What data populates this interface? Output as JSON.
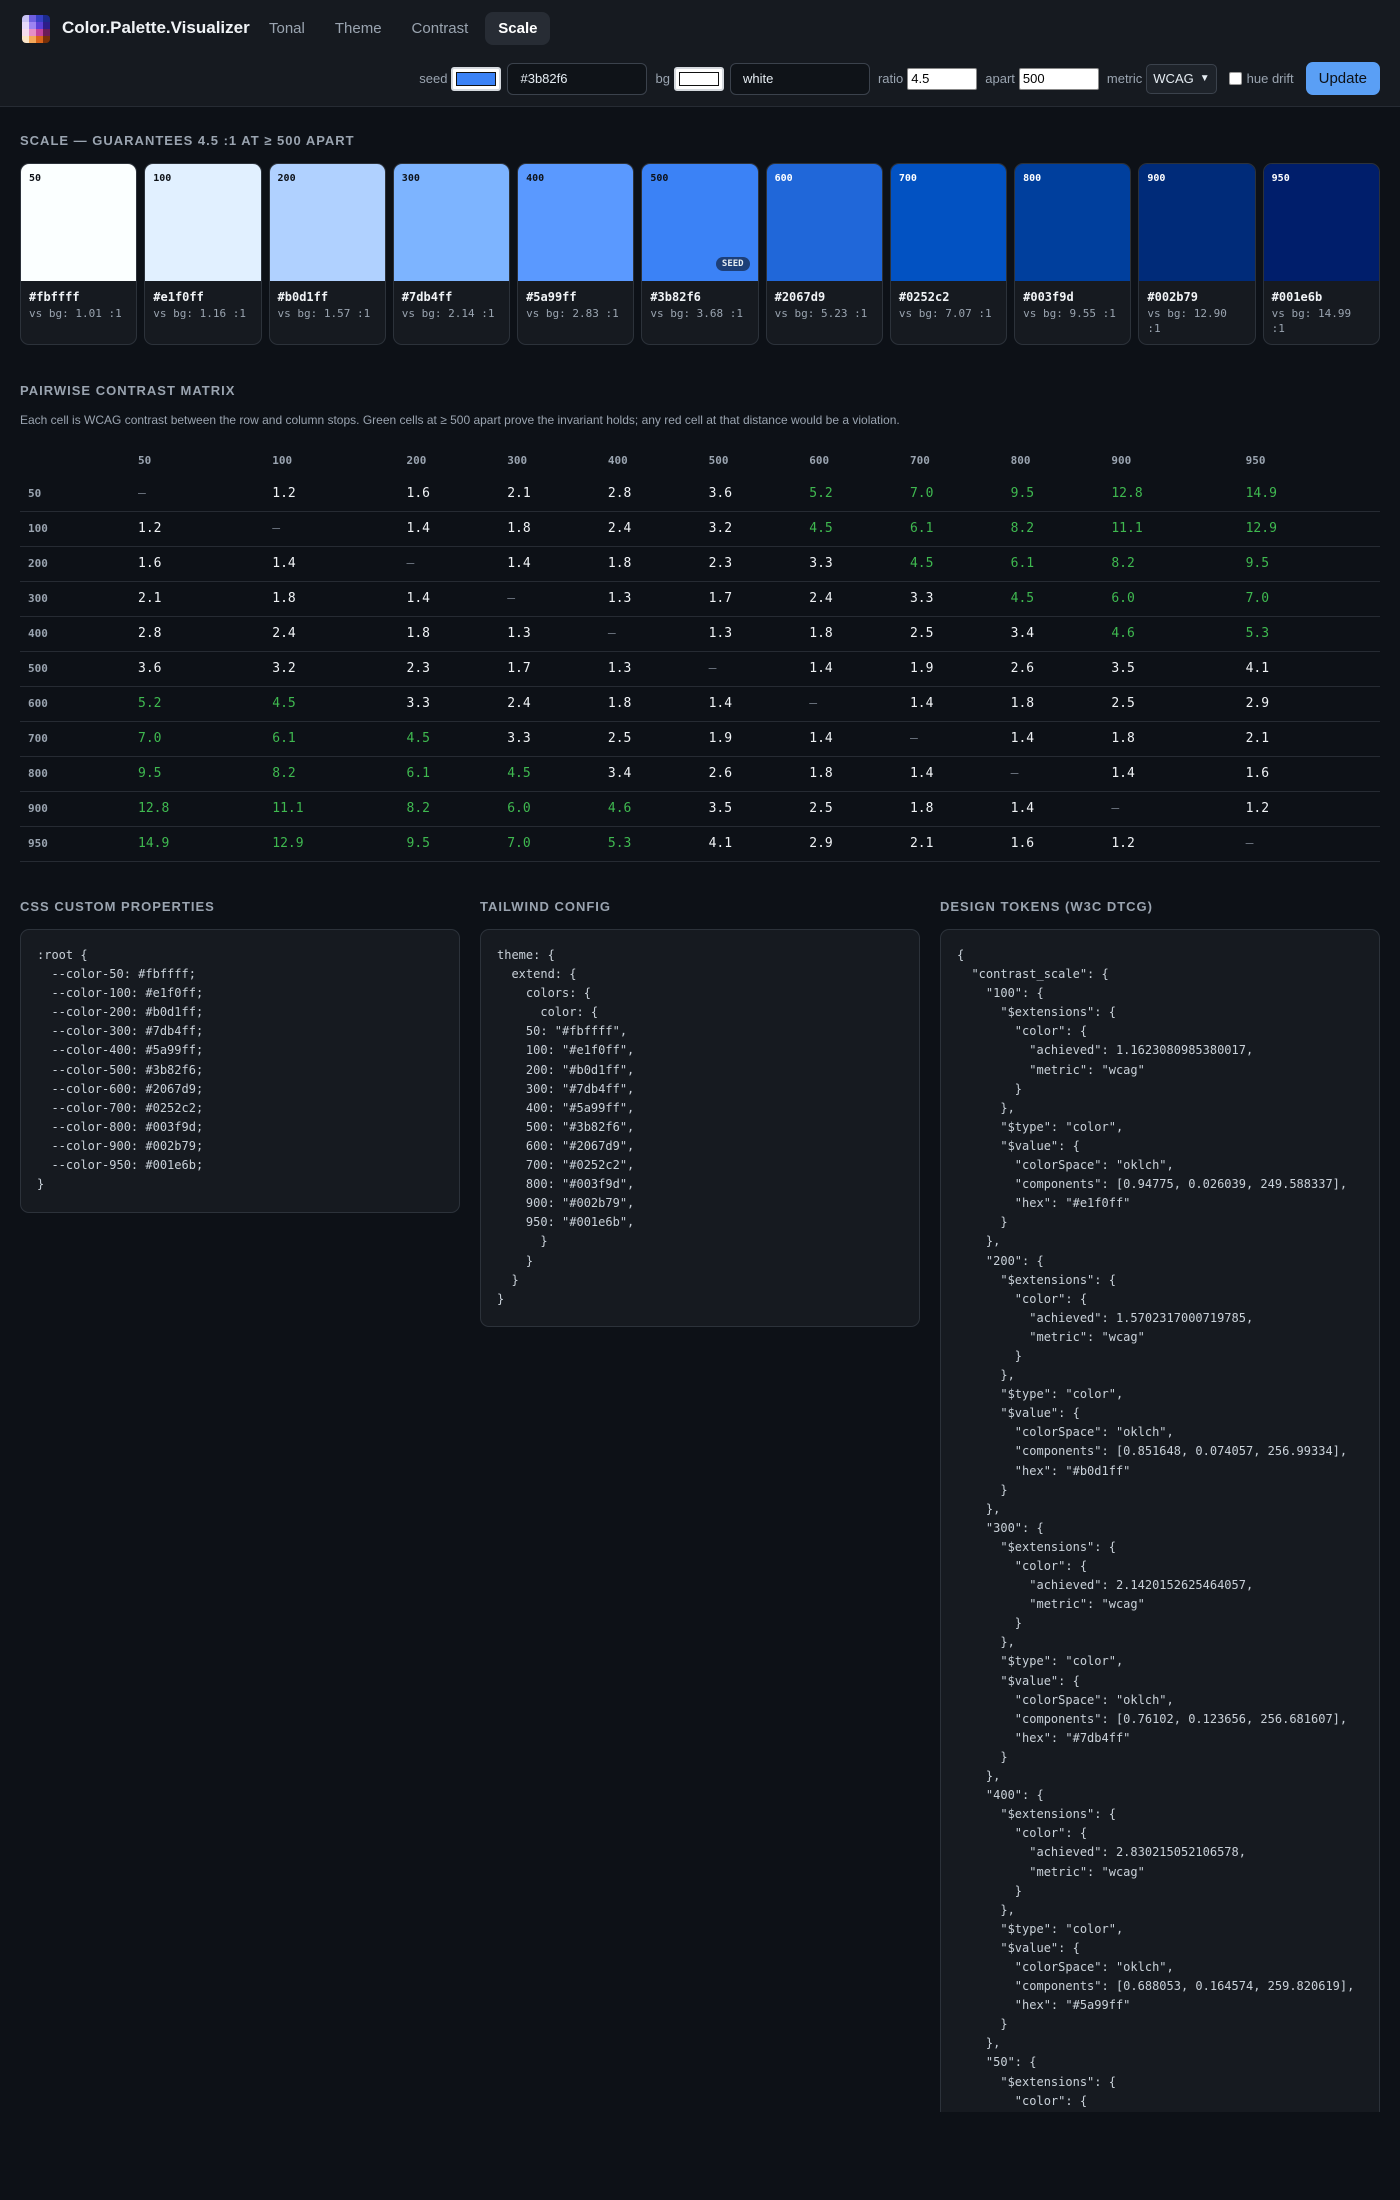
{
  "app": {
    "title": "Color.Palette.Visualizer"
  },
  "nav": {
    "tabs": [
      {
        "label": "Tonal",
        "active": false
      },
      {
        "label": "Theme",
        "active": false
      },
      {
        "label": "Contrast",
        "active": false
      },
      {
        "label": "Scale",
        "active": true
      }
    ]
  },
  "controls": {
    "seed_label": "seed",
    "seed_color": "#3b82f6",
    "seed_value": "#3b82f6",
    "bg_label": "bg",
    "bg_color": "#ffffff",
    "bg_value": "white",
    "ratio_label": "ratio",
    "ratio_value": "4.5",
    "apart_label": "apart",
    "apart_value": "500",
    "metric_label": "metric",
    "metric_value": "WCAG",
    "hue_drift_label": "hue drift",
    "hue_drift_checked": false,
    "update_label": "Update"
  },
  "scale": {
    "title": "SCALE — GUARANTEES 4.5 :1 AT ≥ 500 APART",
    "seed_badge": "SEED",
    "stops": [
      {
        "stop": "50",
        "hex": "#fbffff",
        "vs": "vs bg: 1.01 :1"
      },
      {
        "stop": "100",
        "hex": "#e1f0ff",
        "vs": "vs bg: 1.16 :1"
      },
      {
        "stop": "200",
        "hex": "#b0d1ff",
        "vs": "vs bg: 1.57 :1"
      },
      {
        "stop": "300",
        "hex": "#7db4ff",
        "vs": "vs bg: 2.14 :1"
      },
      {
        "stop": "400",
        "hex": "#5a99ff",
        "vs": "vs bg: 2.83 :1"
      },
      {
        "stop": "500",
        "hex": "#3b82f6",
        "vs": "vs bg: 3.68 :1",
        "seed": true
      },
      {
        "stop": "600",
        "hex": "#2067d9",
        "vs": "vs bg: 5.23 :1"
      },
      {
        "stop": "700",
        "hex": "#0252c2",
        "vs": "vs bg: 7.07 :1"
      },
      {
        "stop": "800",
        "hex": "#003f9d",
        "vs": "vs bg: 9.55 :1"
      },
      {
        "stop": "900",
        "hex": "#002b79",
        "vs": "vs bg: 12.90 :1"
      },
      {
        "stop": "950",
        "hex": "#001e6b",
        "vs": "vs bg: 14.99 :1"
      }
    ]
  },
  "matrix": {
    "title": "PAIRWISE CONTRAST MATRIX",
    "description": "Each cell is WCAG contrast between the row and column stops. Green cells at ≥ 500 apart prove the invariant holds; any red cell at that distance would be a violation.",
    "columns": [
      "50",
      "100",
      "200",
      "300",
      "400",
      "500",
      "600",
      "700",
      "800",
      "900",
      "950"
    ],
    "rows": [
      {
        "label": "50",
        "cells": [
          "—",
          "1.2",
          "1.6",
          "2.1",
          "2.8",
          "3.6",
          "5.2",
          "7.0",
          "9.5",
          "12.8",
          "14.9"
        ]
      },
      {
        "label": "100",
        "cells": [
          "1.2",
          "—",
          "1.4",
          "1.8",
          "2.4",
          "3.2",
          "4.5",
          "6.1",
          "8.2",
          "11.1",
          "12.9"
        ]
      },
      {
        "label": "200",
        "cells": [
          "1.6",
          "1.4",
          "—",
          "1.4",
          "1.8",
          "2.3",
          "3.3",
          "4.5",
          "6.1",
          "8.2",
          "9.5"
        ]
      },
      {
        "label": "300",
        "cells": [
          "2.1",
          "1.8",
          "1.4",
          "—",
          "1.3",
          "1.7",
          "2.4",
          "3.3",
          "4.5",
          "6.0",
          "7.0"
        ]
      },
      {
        "label": "400",
        "cells": [
          "2.8",
          "2.4",
          "1.8",
          "1.3",
          "—",
          "1.3",
          "1.8",
          "2.5",
          "3.4",
          "4.6",
          "5.3"
        ]
      },
      {
        "label": "500",
        "cells": [
          "3.6",
          "3.2",
          "2.3",
          "1.7",
          "1.3",
          "—",
          "1.4",
          "1.9",
          "2.6",
          "3.5",
          "4.1"
        ]
      },
      {
        "label": "600",
        "cells": [
          "5.2",
          "4.5",
          "3.3",
          "2.4",
          "1.8",
          "1.4",
          "—",
          "1.4",
          "1.8",
          "2.5",
          "2.9"
        ]
      },
      {
        "label": "700",
        "cells": [
          "7.0",
          "6.1",
          "4.5",
          "3.3",
          "2.5",
          "1.9",
          "1.4",
          "—",
          "1.4",
          "1.8",
          "2.1"
        ]
      },
      {
        "label": "800",
        "cells": [
          "9.5",
          "8.2",
          "6.1",
          "4.5",
          "3.4",
          "2.6",
          "1.8",
          "1.4",
          "—",
          "1.4",
          "1.6"
        ]
      },
      {
        "label": "900",
        "cells": [
          "12.8",
          "11.1",
          "8.2",
          "6.0",
          "4.6",
          "3.5",
          "2.5",
          "1.8",
          "1.4",
          "—",
          "1.2"
        ]
      },
      {
        "label": "950",
        "cells": [
          "14.9",
          "12.9",
          "9.5",
          "7.0",
          "5.3",
          "4.1",
          "2.9",
          "2.1",
          "1.6",
          "1.2",
          "—"
        ]
      }
    ]
  },
  "exports": {
    "css_title": "CSS CUSTOM PROPERTIES",
    "css_code": ":root {\n  --color-50: #fbffff;\n  --color-100: #e1f0ff;\n  --color-200: #b0d1ff;\n  --color-300: #7db4ff;\n  --color-400: #5a99ff;\n  --color-500: #3b82f6;\n  --color-600: #2067d9;\n  --color-700: #0252c2;\n  --color-800: #003f9d;\n  --color-900: #002b79;\n  --color-950: #001e6b;\n}",
    "tailwind_title": "TAILWIND CONFIG",
    "tailwind_code": "theme: {\n  extend: {\n    colors: {\n      color: {\n    50: \"#fbffff\",\n    100: \"#e1f0ff\",\n    200: \"#b0d1ff\",\n    300: \"#7db4ff\",\n    400: \"#5a99ff\",\n    500: \"#3b82f6\",\n    600: \"#2067d9\",\n    700: \"#0252c2\",\n    800: \"#003f9d\",\n    900: \"#002b79\",\n    950: \"#001e6b\",\n      }\n    }\n  }\n}",
    "tokens_title": "DESIGN TOKENS (W3C DTCG)",
    "tokens_code": "{\n  \"contrast_scale\": {\n    \"100\": {\n      \"$extensions\": {\n        \"color\": {\n          \"achieved\": 1.1623080985380017,\n          \"metric\": \"wcag\"\n        }\n      },\n      \"$type\": \"color\",\n      \"$value\": {\n        \"colorSpace\": \"oklch\",\n        \"components\": [0.94775, 0.026039, 249.588337],\n        \"hex\": \"#e1f0ff\"\n      }\n    },\n    \"200\": {\n      \"$extensions\": {\n        \"color\": {\n          \"achieved\": 1.5702317000719785,\n          \"metric\": \"wcag\"\n        }\n      },\n      \"$type\": \"color\",\n      \"$value\": {\n        \"colorSpace\": \"oklch\",\n        \"components\": [0.851648, 0.074057, 256.99334],\n        \"hex\": \"#b0d1ff\"\n      }\n    },\n    \"300\": {\n      \"$extensions\": {\n        \"color\": {\n          \"achieved\": 2.1420152625464057,\n          \"metric\": \"wcag\"\n        }\n      },\n      \"$type\": \"color\",\n      \"$value\": {\n        \"colorSpace\": \"oklch\",\n        \"components\": [0.76102, 0.123656, 256.681607],\n        \"hex\": \"#7db4ff\"\n      }\n    },\n    \"400\": {\n      \"$extensions\": {\n        \"color\": {\n          \"achieved\": 2.830215052106578,\n          \"metric\": \"wcag\"\n        }\n      },\n      \"$type\": \"color\",\n      \"$value\": {\n        \"colorSpace\": \"oklch\",\n        \"components\": [0.688053, 0.164574, 259.820619],\n        \"hex\": \"#5a99ff\"\n      }\n    },\n    \"50\": {\n      \"$extensions\": {\n        \"color\": {"
  }
}
